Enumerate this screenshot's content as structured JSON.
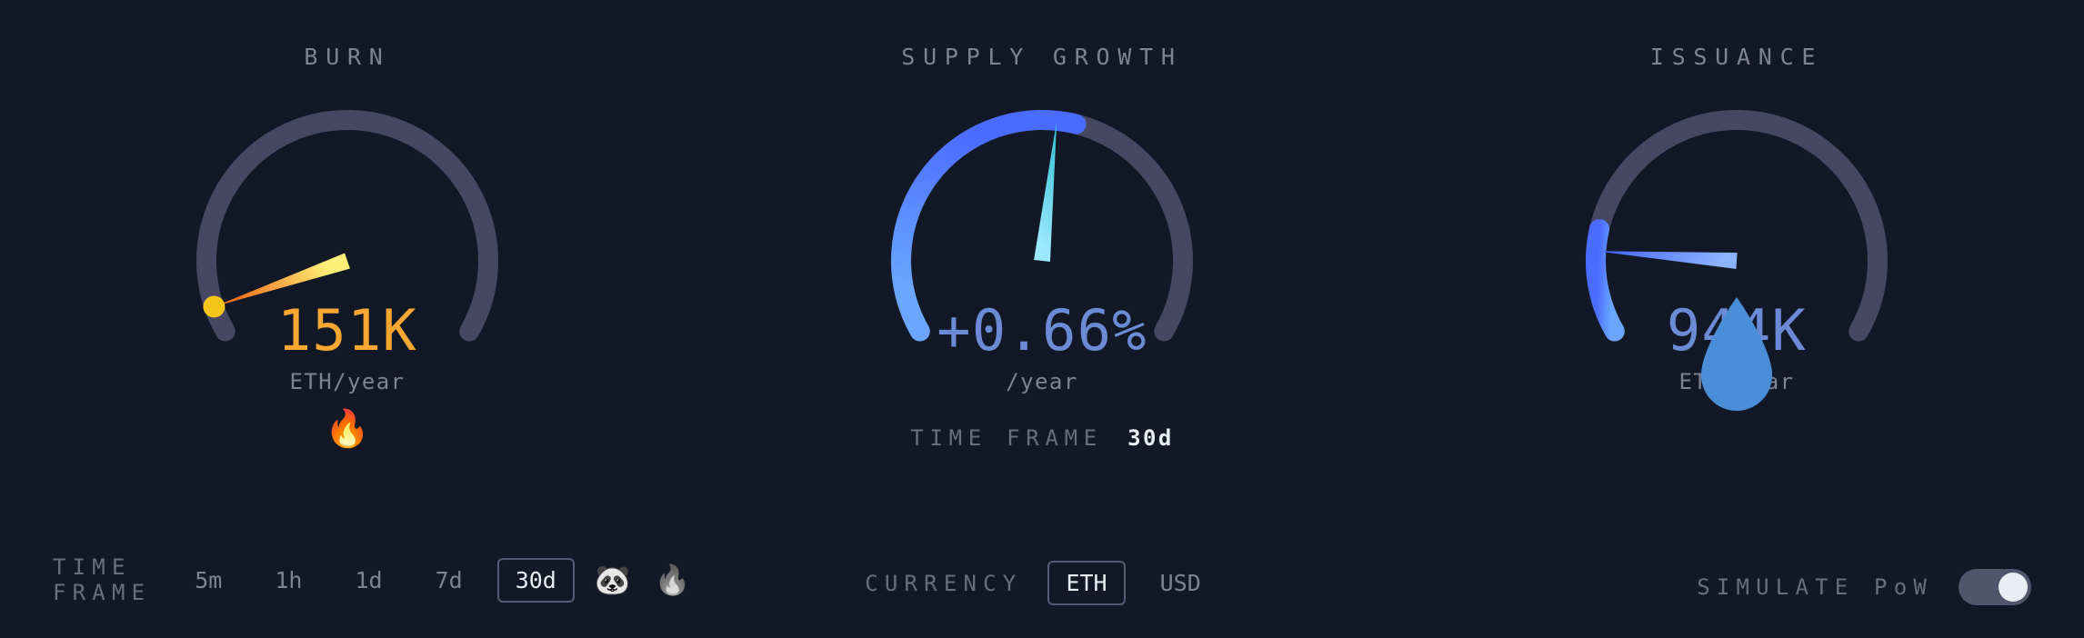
{
  "gauge": {
    "arc_start_deg": 150,
    "arc_end_deg": 390,
    "track_color": "#474764",
    "track_width": 22,
    "needle_half_width": 9
  },
  "burn": {
    "title": "BURN",
    "value": "151K",
    "unit": "ETH/year",
    "value_color": "#f8a832",
    "icon_glyph": "🔥",
    "needle_angle_deg": 161,
    "needle_gradient": [
      "#fff07a",
      "#f4741e"
    ],
    "endpoint_dot_color": "#f6c51b",
    "fill_arc": false
  },
  "supply": {
    "title": "SUPPLY GROWTH",
    "value": "+0.66%",
    "unit": "/year",
    "value_color": "#6b8bd6",
    "needle_angle_deg": 276,
    "needle_gradient": [
      "#9be8ff",
      "#3fc5d8"
    ],
    "fill_arc": true,
    "fill_gradient": [
      "#6aa6ff",
      "#4a6bff"
    ],
    "fill_end_deg": 284,
    "timeframe_label": "TIME FRAME",
    "timeframe_value": "30d"
  },
  "issuance": {
    "title": "ISSUANCE",
    "value": "944K",
    "unit": "ETH/year",
    "value_color": "#6b8bd6",
    "icon_glyph": "💧",
    "icon_color": "#4a8ed8",
    "needle_angle_deg": 184,
    "needle_gradient": [
      "#8db4ff",
      "#4a6bff"
    ],
    "fill_arc": true,
    "fill_gradient": [
      "#6aa6ff",
      "#4a6bff"
    ],
    "fill_end_deg": 193
  },
  "timeframe": {
    "label": "TIME FRAME",
    "options": [
      "5m",
      "1h",
      "1d",
      "7d",
      "30d"
    ],
    "selected": "30d",
    "extra_icons": [
      "🐼",
      "🔥"
    ]
  },
  "currency": {
    "label": "CURRENCY",
    "options": [
      "ETH",
      "USD"
    ],
    "selected": "ETH"
  },
  "simulate": {
    "label": "SIMULATE PoW",
    "on": true
  }
}
